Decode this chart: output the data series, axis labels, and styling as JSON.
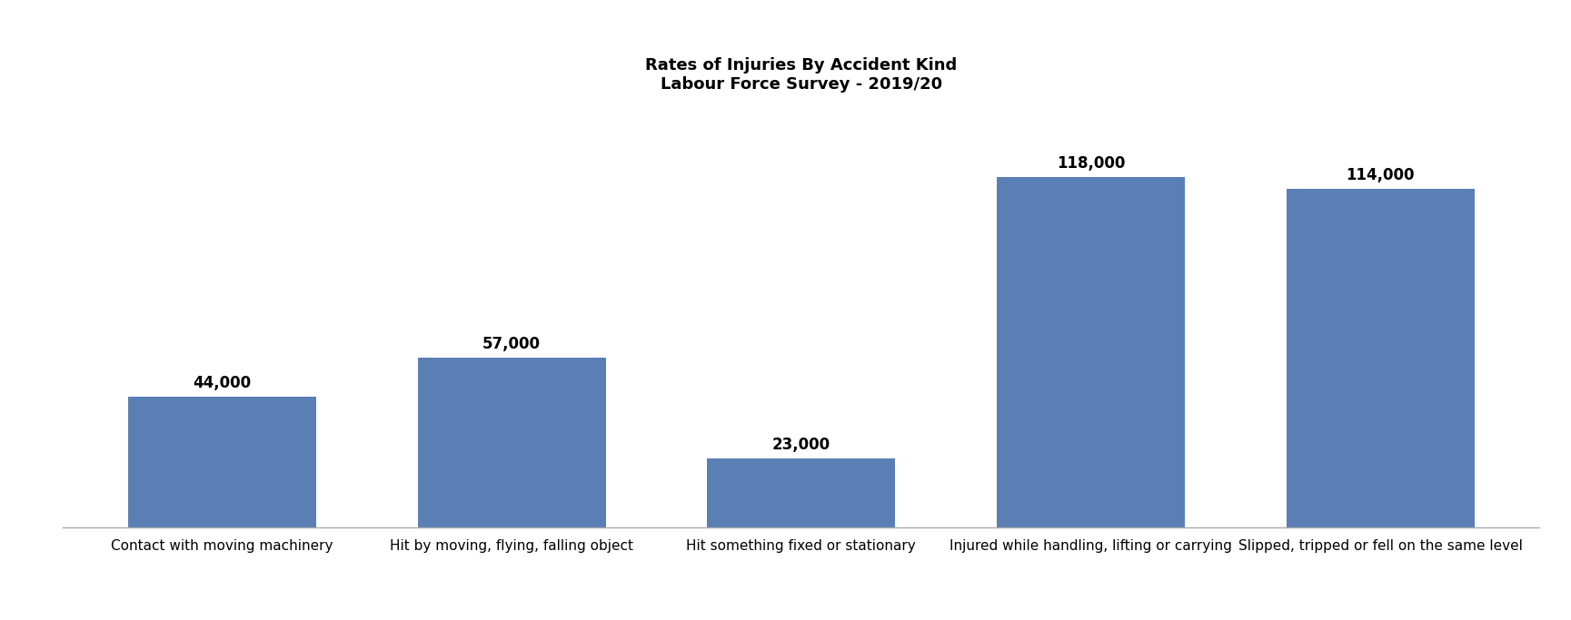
{
  "title_line1": "Rates of Injuries By Accident Kind",
  "title_line2": "Labour Force Survey - 2019/20",
  "categories": [
    "Contact with moving machinery",
    "Hit by moving, flying, falling object",
    "Hit something fixed or stationary",
    "Injured while handling, lifting or carrying",
    "Slipped, tripped or fell on the same level"
  ],
  "values": [
    44000,
    57000,
    23000,
    118000,
    114000
  ],
  "bar_color": "#5a7fb5",
  "bar_labels": [
    "44,000",
    "57,000",
    "23,000",
    "118,000",
    "114,000"
  ],
  "background_color": "#ffffff",
  "title_fontsize": 13,
  "label_fontsize": 11,
  "bar_label_fontsize": 12,
  "bar_width": 0.65,
  "ylim": [
    0,
    140000
  ],
  "xlim_left": -0.55,
  "xlim_right": 4.55
}
